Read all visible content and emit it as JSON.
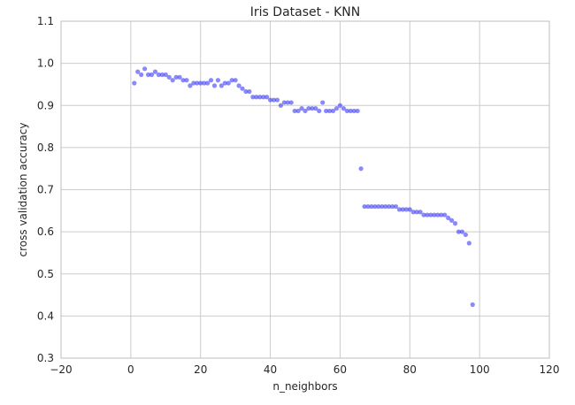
{
  "chart_data": {
    "type": "scatter",
    "title": "Iris Dataset - KNN",
    "xlabel": "n_neighbors",
    "ylabel": "cross validation accuracy",
    "xlim": [
      -20,
      120
    ],
    "ylim": [
      0.3,
      1.1
    ],
    "x_ticks": [
      -20,
      0,
      20,
      40,
      60,
      80,
      100,
      120
    ],
    "y_ticks": [
      0.3,
      0.4,
      0.5,
      0.6,
      0.7,
      0.8,
      0.9,
      1.0,
      1.1
    ],
    "x_tick_labels": [
      "−20",
      "0",
      "20",
      "40",
      "60",
      "80",
      "100",
      "120"
    ],
    "y_tick_labels": [
      "0.3",
      "0.4",
      "0.5",
      "0.6",
      "0.7",
      "0.8",
      "0.9",
      "1.0",
      "1.1"
    ],
    "grid": true,
    "marker_color": "#3a3af5",
    "x": [
      1,
      2,
      3,
      4,
      5,
      6,
      7,
      8,
      9,
      10,
      11,
      12,
      13,
      14,
      15,
      16,
      17,
      18,
      19,
      20,
      21,
      22,
      23,
      24,
      25,
      26,
      27,
      28,
      29,
      30,
      31,
      32,
      33,
      34,
      35,
      36,
      37,
      38,
      39,
      40,
      41,
      42,
      43,
      44,
      45,
      46,
      47,
      48,
      49,
      50,
      51,
      52,
      53,
      54,
      55,
      56,
      57,
      58,
      59,
      60,
      61,
      62,
      63,
      64,
      65,
      66,
      67,
      68,
      69,
      70,
      71,
      72,
      73,
      74,
      75,
      76,
      77,
      78,
      79,
      80,
      81,
      82,
      83,
      84,
      85,
      86,
      87,
      88,
      89,
      90,
      91,
      92,
      93,
      94,
      95,
      96,
      97,
      98
    ],
    "y": [
      0.953,
      0.98,
      0.973,
      0.987,
      0.973,
      0.973,
      0.98,
      0.973,
      0.973,
      0.973,
      0.967,
      0.96,
      0.967,
      0.967,
      0.96,
      0.96,
      0.947,
      0.953,
      0.953,
      0.953,
      0.953,
      0.953,
      0.96,
      0.947,
      0.96,
      0.947,
      0.953,
      0.953,
      0.96,
      0.96,
      0.947,
      0.94,
      0.933,
      0.933,
      0.92,
      0.92,
      0.92,
      0.92,
      0.92,
      0.913,
      0.913,
      0.913,
      0.9,
      0.907,
      0.907,
      0.907,
      0.887,
      0.887,
      0.893,
      0.887,
      0.893,
      0.893,
      0.893,
      0.887,
      0.907,
      0.887,
      0.887,
      0.887,
      0.893,
      0.9,
      0.893,
      0.887,
      0.887,
      0.887,
      0.887,
      0.75,
      0.66,
      0.66,
      0.66,
      0.66,
      0.66,
      0.66,
      0.66,
      0.66,
      0.66,
      0.66,
      0.653,
      0.653,
      0.653,
      0.653,
      0.647,
      0.647,
      0.647,
      0.64,
      0.64,
      0.64,
      0.64,
      0.64,
      0.64,
      0.64,
      0.633,
      0.627,
      0.62,
      0.6,
      0.6,
      0.593,
      0.573,
      0.427
    ]
  }
}
